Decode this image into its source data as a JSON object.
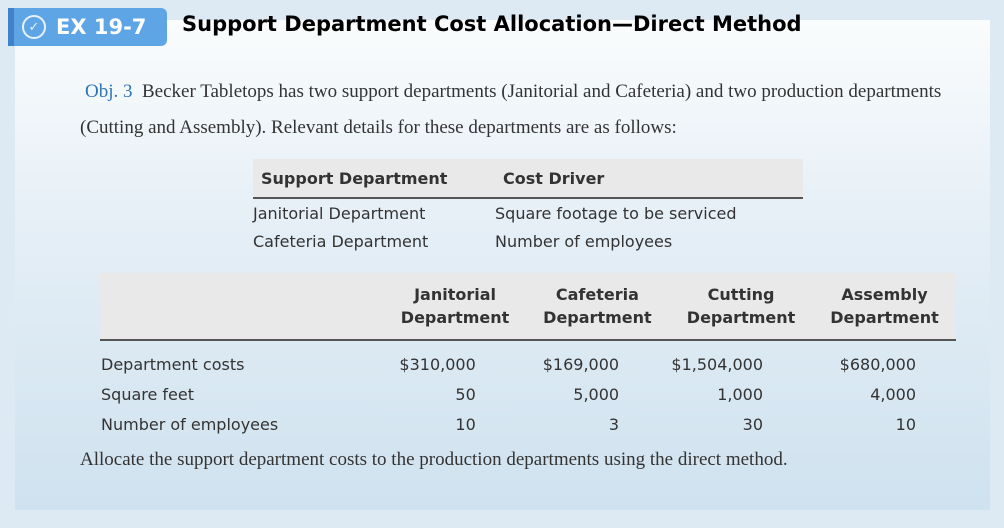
{
  "header": {
    "badge": "EX 19-7",
    "title": "Support Department Cost Allocation—Direct Method",
    "icon": "check-circle-icon"
  },
  "intro": {
    "obj": "Obj. 3",
    "text": "Becker Tabletops has two support departments (Janitorial and Cafeteria) and two production departments (Cutting and Assembly). Relevant details for these departments are as follows:"
  },
  "drivers": {
    "headers": [
      "Support Department",
      "Cost Driver"
    ],
    "rows": [
      [
        "Janitorial Department",
        "Square footage to be serviced"
      ],
      [
        "Cafeteria Department",
        "Number of employees"
      ]
    ]
  },
  "details": {
    "headers": [
      [
        "Janitorial",
        "Department"
      ],
      [
        "Cafeteria",
        "Department"
      ],
      [
        "Cutting",
        "Department"
      ],
      [
        "Assembly",
        "Department"
      ]
    ],
    "rows": [
      [
        "Department costs",
        "$310,000",
        "$169,000",
        "$1,504,000",
        "$680,000"
      ],
      [
        "Square feet",
        "50",
        "5,000",
        "1,000",
        "4,000"
      ],
      [
        "Number of employees",
        "10",
        "3",
        "30",
        "10"
      ]
    ]
  },
  "instruction": "Allocate the support department costs to the production departments using the direct method."
}
